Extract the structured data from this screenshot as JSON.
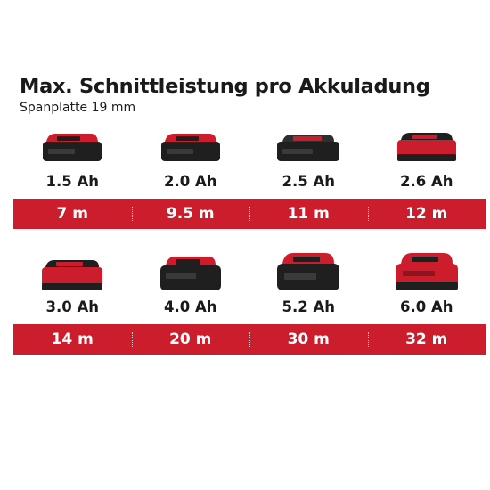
{
  "header": {
    "title": "Max. Schnittleistung pro Akkuladung",
    "subtitle": "Spanplatte 19 mm"
  },
  "colors": {
    "brand_red": "#cc1d2d",
    "battery_black": "#1f1f1f",
    "text": "#1a1a1a"
  },
  "batteries": [
    {
      "capacity": "1.5 Ah",
      "cut": "7 m",
      "icon": "battery-pack-small-icon"
    },
    {
      "capacity": "2.0 Ah",
      "cut": "9.5 m",
      "icon": "battery-pack-small-icon"
    },
    {
      "capacity": "2.5 Ah",
      "cut": "11 m",
      "icon": "battery-pack-flat-icon"
    },
    {
      "capacity": "2.6 Ah",
      "cut": "12 m",
      "icon": "battery-pack-red-icon"
    },
    {
      "capacity": "3.0 Ah",
      "cut": "14 m",
      "icon": "battery-pack-red-icon"
    },
    {
      "capacity": "4.0 Ah",
      "cut": "20 m",
      "icon": "battery-pack-large-icon"
    },
    {
      "capacity": "5.2 Ah",
      "cut": "30 m",
      "icon": "battery-pack-plus-icon"
    },
    {
      "capacity": "6.0 Ah",
      "cut": "32 m",
      "icon": "battery-pack-plus-red-icon"
    }
  ]
}
